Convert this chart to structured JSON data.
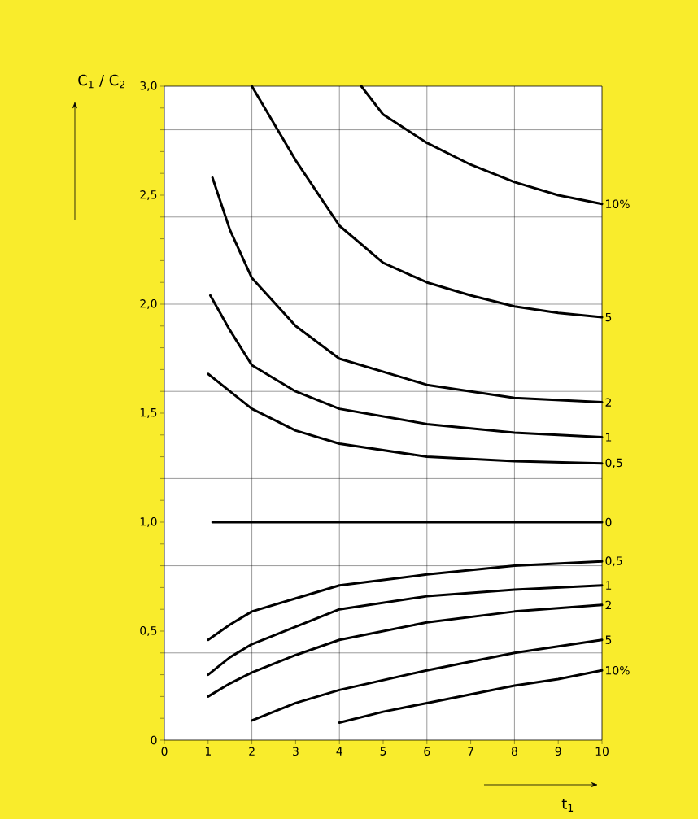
{
  "chart_data": {
    "type": "line",
    "xlabel": "t$_{1}$",
    "ylabel": "C$_{1}$ / C$_{2}$",
    "xlim": [
      0,
      10
    ],
    "ylim": [
      0,
      3
    ],
    "xticks": [
      0,
      1,
      2,
      3,
      4,
      5,
      6,
      7,
      8,
      9,
      10
    ],
    "yticks": [
      0,
      {
        "value": 0.1,
        "label": null
      },
      {
        "value": 0.2,
        "label": null
      },
      {
        "value": 0.3,
        "label": null
      },
      {
        "value": 0.4,
        "label": null
      },
      {
        "value": 0.5,
        "label": "0,5"
      },
      {
        "value": 0.6,
        "label": null
      },
      {
        "value": 0.7,
        "label": null
      },
      {
        "value": 0.8,
        "label": null
      },
      {
        "value": 0.9,
        "label": null
      },
      {
        "value": 1.0,
        "label": "1,0"
      },
      {
        "value": 1.1,
        "label": null
      },
      {
        "value": 1.2,
        "label": null
      },
      {
        "value": 1.3,
        "label": null
      },
      {
        "value": 1.4,
        "label": null
      },
      {
        "value": 1.5,
        "label": "1,5"
      },
      {
        "value": 1.6,
        "label": null
      },
      {
        "value": 1.7,
        "label": null
      },
      {
        "value": 1.8,
        "label": null
      },
      {
        "value": 1.9,
        "label": null
      },
      {
        "value": 2.0,
        "label": "2,0"
      },
      {
        "value": 2.1,
        "label": null
      },
      {
        "value": 2.2,
        "label": null
      },
      {
        "value": 2.3,
        "label": null
      },
      {
        "value": 2.4,
        "label": null
      },
      {
        "value": 2.5,
        "label": "2,5"
      },
      {
        "value": 2.6,
        "label": null
      },
      {
        "value": 2.7,
        "label": null
      },
      {
        "value": 2.8,
        "label": null
      },
      {
        "value": 2.9,
        "label": null
      },
      {
        "value": 3.0,
        "label": "3,0"
      }
    ],
    "grid": true,
    "marker": "none",
    "line_style": "solid",
    "series": [
      {
        "name": "10%",
        "color": "#000000",
        "x": [
          4.5,
          5,
          6,
          7,
          8,
          9,
          10
        ],
        "values": [
          3.0,
          2.87,
          2.74,
          2.64,
          2.56,
          2.5,
          2.46
        ]
      },
      {
        "name": "5",
        "color": "#000000",
        "x": [
          2,
          2.5,
          3,
          4,
          5,
          6,
          7,
          8,
          9,
          10
        ],
        "values": [
          3.0,
          2.83,
          2.66,
          2.36,
          2.19,
          2.1,
          2.04,
          1.99,
          1.96,
          1.94
        ]
      },
      {
        "name": "2",
        "color": "#000000",
        "x": [
          1.1,
          1.5,
          2,
          3,
          4,
          6,
          8,
          10
        ],
        "values": [
          2.58,
          2.34,
          2.12,
          1.9,
          1.75,
          1.63,
          1.57,
          1.55
        ]
      },
      {
        "name": "1",
        "color": "#000000",
        "x": [
          1.05,
          1.5,
          2,
          3,
          4,
          6,
          8,
          10
        ],
        "values": [
          2.04,
          1.88,
          1.72,
          1.6,
          1.52,
          1.45,
          1.41,
          1.39
        ]
      },
      {
        "name": "0,5",
        "color": "#000000",
        "x": [
          1,
          1.5,
          2,
          3,
          4,
          6,
          8,
          10
        ],
        "values": [
          1.68,
          1.6,
          1.52,
          1.42,
          1.36,
          1.3,
          1.28,
          1.27
        ]
      },
      {
        "name": "0",
        "color": "#000000",
        "x": [
          1.1,
          10
        ],
        "values": [
          1.0,
          1.0
        ]
      },
      {
        "name": "0,5",
        "color": "#000000",
        "x": [
          1,
          1.5,
          2,
          3,
          4,
          6,
          8,
          10
        ],
        "values": [
          0.46,
          0.53,
          0.59,
          0.65,
          0.71,
          0.76,
          0.8,
          0.82
        ]
      },
      {
        "name": "1",
        "color": "#000000",
        "x": [
          1,
          1.5,
          2,
          3,
          4,
          6,
          8,
          10
        ],
        "values": [
          0.3,
          0.38,
          0.44,
          0.52,
          0.6,
          0.66,
          0.69,
          0.71
        ]
      },
      {
        "name": "2",
        "color": "#000000",
        "x": [
          1,
          1.5,
          2,
          3,
          4,
          6,
          8,
          10
        ],
        "values": [
          0.2,
          0.26,
          0.31,
          0.39,
          0.46,
          0.54,
          0.59,
          0.62
        ]
      },
      {
        "name": "5",
        "color": "#000000",
        "x": [
          2,
          3,
          4,
          6,
          8,
          10
        ],
        "values": [
          0.09,
          0.17,
          0.23,
          0.32,
          0.4,
          0.46
        ]
      },
      {
        "name": "10%",
        "color": "#000000",
        "x": [
          4,
          5,
          6,
          7,
          8,
          9,
          10
        ],
        "values": [
          0.08,
          0.13,
          0.17,
          0.21,
          0.25,
          0.28,
          0.32
        ]
      }
    ]
  }
}
